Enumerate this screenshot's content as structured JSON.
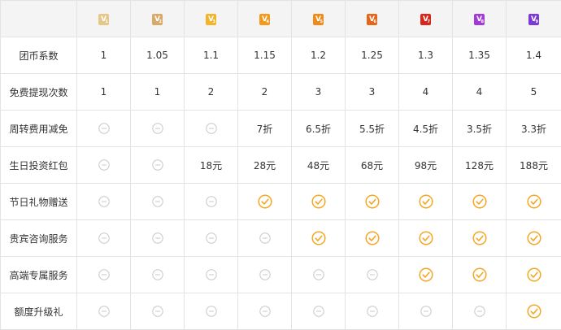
{
  "colors": {
    "border": "#e3e3e3",
    "header_bg": "#f4f4f4",
    "text": "#333333",
    "check": "#f5a623",
    "none": "#c8c8c8"
  },
  "levels": [
    {
      "glyph": "V",
      "sub": "1",
      "color": "#e6c78a"
    },
    {
      "glyph": "V",
      "sub": "2",
      "color": "#d8aa6a"
    },
    {
      "glyph": "V",
      "sub": "3",
      "color": "#f2b42b"
    },
    {
      "glyph": "V",
      "sub": "4",
      "color": "#f39a1e"
    },
    {
      "glyph": "V",
      "sub": "5",
      "color": "#f08a1c"
    },
    {
      "glyph": "V",
      "sub": "6",
      "color": "#e4661a"
    },
    {
      "glyph": "V",
      "sub": "7",
      "color": "#d9261c"
    },
    {
      "glyph": "V",
      "sub": "8",
      "color": "#a23ad8"
    },
    {
      "glyph": "V",
      "sub": "9",
      "color": "#7b3ad8"
    }
  ],
  "rows": [
    {
      "label": "团币系数",
      "cells": [
        {
          "t": "1"
        },
        {
          "t": "1.05"
        },
        {
          "t": "1.1"
        },
        {
          "t": "1.15"
        },
        {
          "t": "1.2"
        },
        {
          "t": "1.25"
        },
        {
          "t": "1.3"
        },
        {
          "t": "1.35"
        },
        {
          "t": "1.4"
        }
      ]
    },
    {
      "label": "免费提现次数",
      "cells": [
        {
          "t": "1"
        },
        {
          "t": "1"
        },
        {
          "t": "2"
        },
        {
          "t": "2"
        },
        {
          "t": "3"
        },
        {
          "t": "3"
        },
        {
          "t": "4"
        },
        {
          "t": "4"
        },
        {
          "t": "5"
        }
      ]
    },
    {
      "label": "周转费用减免",
      "cells": [
        {
          "m": "none"
        },
        {
          "m": "none"
        },
        {
          "m": "none"
        },
        {
          "t": "7折"
        },
        {
          "t": "6.5折"
        },
        {
          "t": "5.5折"
        },
        {
          "t": "4.5折"
        },
        {
          "t": "3.5折"
        },
        {
          "t": "3.3折"
        }
      ]
    },
    {
      "label": "生日投资红包",
      "cells": [
        {
          "m": "none"
        },
        {
          "m": "none"
        },
        {
          "t": "18元"
        },
        {
          "t": "28元"
        },
        {
          "t": "48元"
        },
        {
          "t": "68元"
        },
        {
          "t": "98元"
        },
        {
          "t": "128元"
        },
        {
          "t": "188元"
        }
      ]
    },
    {
      "label": "节日礼物赠送",
      "cells": [
        {
          "m": "none"
        },
        {
          "m": "none"
        },
        {
          "m": "none"
        },
        {
          "m": "check"
        },
        {
          "m": "check"
        },
        {
          "m": "check"
        },
        {
          "m": "check"
        },
        {
          "m": "check"
        },
        {
          "m": "check"
        }
      ]
    },
    {
      "label": "贵宾咨询服务",
      "cells": [
        {
          "m": "none"
        },
        {
          "m": "none"
        },
        {
          "m": "none"
        },
        {
          "m": "none"
        },
        {
          "m": "check"
        },
        {
          "m": "check"
        },
        {
          "m": "check"
        },
        {
          "m": "check"
        },
        {
          "m": "check"
        }
      ]
    },
    {
      "label": "高端专属服务",
      "cells": [
        {
          "m": "none"
        },
        {
          "m": "none"
        },
        {
          "m": "none"
        },
        {
          "m": "none"
        },
        {
          "m": "none"
        },
        {
          "m": "none"
        },
        {
          "m": "check"
        },
        {
          "m": "check"
        },
        {
          "m": "check"
        }
      ]
    },
    {
      "label": "额度升级礼",
      "cells": [
        {
          "m": "none"
        },
        {
          "m": "none"
        },
        {
          "m": "none"
        },
        {
          "m": "none"
        },
        {
          "m": "none"
        },
        {
          "m": "none"
        },
        {
          "m": "none"
        },
        {
          "m": "none"
        },
        {
          "m": "check"
        }
      ]
    }
  ]
}
